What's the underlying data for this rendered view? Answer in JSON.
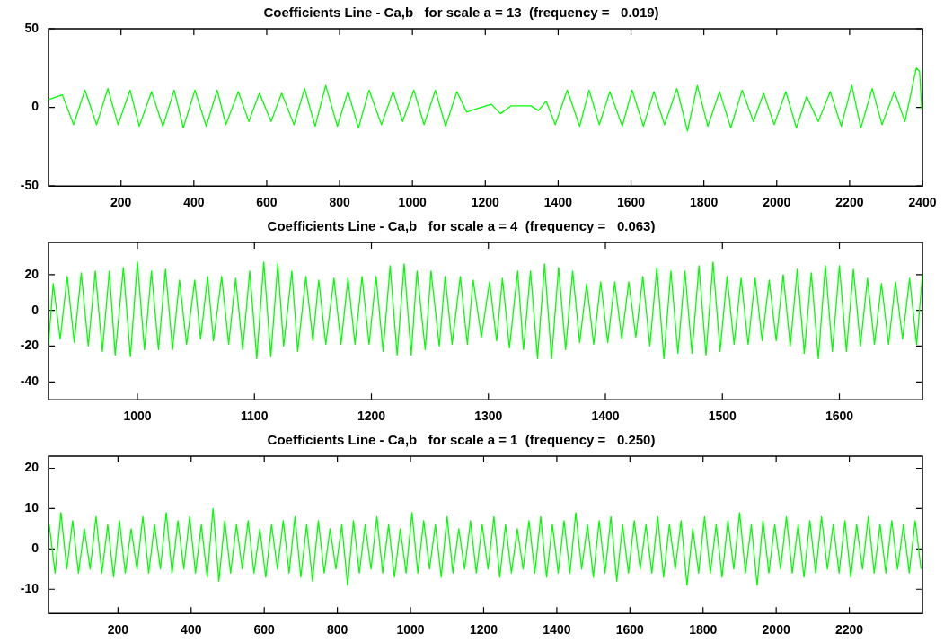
{
  "chart_data": [
    {
      "type": "line",
      "title": "Coefficients Line - Ca,b   for scale a = 13  (frequency =   0.019)",
      "xlim": [
        1,
        2400
      ],
      "xticks": [
        200,
        400,
        600,
        800,
        1000,
        1200,
        1400,
        1600,
        1800,
        2000,
        2200,
        2400
      ],
      "ylim": [
        -50,
        50
      ],
      "yticks": [
        -50,
        0,
        50
      ],
      "series": [
        {
          "color": "#00ff00",
          "x": [
            2,
            39,
            70,
            101,
            133,
            164,
            192,
            225,
            250,
            284,
            315,
            346,
            371,
            403,
            434,
            464,
            488,
            522,
            551,
            580,
            612,
            641,
            675,
            704,
            733,
            762,
            794,
            823,
            852,
            881,
            915,
            947,
            973,
            1004,
            1032,
            1063,
            1091,
            1122,
            1149,
            1174,
            1217,
            1242,
            1271,
            1325,
            1346,
            1367,
            1392,
            1425,
            1459,
            1485,
            1513,
            1542,
            1576,
            1603,
            1634,
            1663,
            1692,
            1726,
            1755,
            1782,
            1811,
            1843,
            1874,
            1905,
            1936,
            1964,
            1993,
            2025,
            2054,
            2082,
            2114,
            2147,
            2177,
            2206,
            2231,
            2262,
            2289,
            2323,
            2352,
            2383,
            2392,
            2398
          ],
          "values": [
            5,
            8,
            -11,
            11,
            -11,
            12,
            -11,
            11,
            -12,
            10,
            -12,
            11,
            -13,
            11,
            -12,
            11,
            -11,
            10,
            -9,
            9,
            -9,
            9,
            -11,
            12,
            -12,
            14,
            -12,
            10,
            -13,
            11,
            -11,
            10,
            -9,
            11,
            -11,
            11,
            -12,
            10,
            -3,
            -1,
            2,
            -4,
            1,
            1,
            -2,
            4,
            -11,
            11,
            -12,
            11,
            -11,
            10,
            -12,
            11,
            -12,
            10,
            -11,
            12,
            -15,
            14,
            -12,
            10,
            -13,
            11,
            -9,
            9,
            -11,
            10,
            -13,
            7,
            -9,
            10,
            -12,
            14,
            -13,
            12,
            -11,
            10,
            -9,
            25,
            23,
            -1
          ]
        }
      ]
    },
    {
      "type": "line",
      "title": "Coefficients Line - Ca,b   for scale a = 4  (frequency =   0.063)",
      "xlim": [
        924,
        1671
      ],
      "xticks": [
        1000,
        1100,
        1200,
        1300,
        1400,
        1500,
        1600
      ],
      "ylim": [
        -50,
        38
      ],
      "yticks": [
        -40,
        -20,
        0,
        20
      ],
      "series": [
        {
          "color": "#00ff00",
          "x": [
            924,
            928,
            934,
            940,
            946,
            952,
            958,
            964,
            970,
            976,
            981,
            988,
            994,
            1000,
            1006,
            1012,
            1018,
            1024,
            1030,
            1036,
            1042,
            1049,
            1054,
            1060,
            1065,
            1072,
            1078,
            1084,
            1090,
            1096,
            1102,
            1108,
            1114,
            1120,
            1125,
            1132,
            1137,
            1144,
            1150,
            1155,
            1161,
            1168,
            1174,
            1180,
            1186,
            1192,
            1198,
            1204,
            1210,
            1216,
            1222,
            1228,
            1234,
            1239,
            1246,
            1251,
            1258,
            1263,
            1269,
            1276,
            1282,
            1287,
            1294,
            1301,
            1307,
            1312,
            1318,
            1325,
            1330,
            1336,
            1342,
            1348,
            1354,
            1360,
            1366,
            1372,
            1378,
            1384,
            1390,
            1396,
            1402,
            1408,
            1414,
            1420,
            1426,
            1432,
            1438,
            1444,
            1450,
            1456,
            1462,
            1468,
            1474,
            1480,
            1486,
            1492,
            1498,
            1504,
            1510,
            1516,
            1522,
            1528,
            1534,
            1540,
            1546,
            1552,
            1558,
            1564,
            1570,
            1576,
            1582,
            1588,
            1594,
            1600,
            1606,
            1612,
            1618,
            1624,
            1630,
            1636,
            1642,
            1648,
            1654,
            1660,
            1666,
            1671
          ],
          "values": [
            -19,
            15,
            -16,
            19,
            -18,
            21,
            -20,
            22,
            -23,
            22,
            -25,
            24,
            -26,
            27,
            -22,
            22,
            -22,
            23,
            -22,
            17,
            -19,
            17,
            -16,
            19,
            -17,
            19,
            -19,
            18,
            -22,
            22,
            -27,
            27,
            -26,
            26,
            -20,
            22,
            -23,
            19,
            -17,
            17,
            -19,
            18,
            -19,
            18,
            -19,
            19,
            -19,
            19,
            -23,
            25,
            -25,
            26,
            -25,
            22,
            -22,
            22,
            -20,
            19,
            -19,
            19,
            -19,
            17,
            -15,
            16,
            -17,
            18,
            -21,
            22,
            -22,
            22,
            -27,
            26,
            -27,
            24,
            -22,
            22,
            -18,
            15,
            -19,
            16,
            -18,
            16,
            -16,
            16,
            -15,
            19,
            -20,
            24,
            -27,
            22,
            -24,
            22,
            -24,
            25,
            -25,
            27,
            -23,
            19,
            -19,
            18,
            -19,
            18,
            -17,
            17,
            -17,
            20,
            -20,
            23,
            -24,
            21,
            -27,
            25,
            -23,
            25,
            -23,
            23,
            -20,
            18,
            -19,
            15,
            -19,
            16,
            -16,
            18,
            -19,
            20
          ]
        }
      ]
    },
    {
      "type": "line",
      "title": "Coefficients Line - Ca,b   for scale a = 1  (frequency =   0.250)",
      "xlim": [
        10,
        2400
      ],
      "xticks": [
        200,
        400,
        600,
        800,
        1000,
        1200,
        1400,
        1600,
        1800,
        2000,
        2200
      ],
      "ylim": [
        -16,
        23
      ],
      "yticks": [
        -10,
        0,
        10,
        20
      ],
      "series": [
        {
          "color": "#00ff00",
          "x": [
            12,
            28,
            44,
            60,
            76,
            92,
            108,
            124,
            140,
            156,
            172,
            188,
            204,
            220,
            236,
            252,
            268,
            284,
            300,
            316,
            332,
            348,
            364,
            380,
            396,
            412,
            428,
            444,
            460,
            476,
            492,
            508,
            524,
            540,
            556,
            572,
            588,
            604,
            620,
            636,
            652,
            668,
            684,
            700,
            716,
            732,
            748,
            764,
            780,
            796,
            812,
            828,
            844,
            860,
            876,
            892,
            908,
            924,
            940,
            956,
            972,
            988,
            1004,
            1020,
            1036,
            1052,
            1068,
            1084,
            1100,
            1116,
            1132,
            1148,
            1164,
            1180,
            1196,
            1212,
            1228,
            1244,
            1260,
            1276,
            1292,
            1308,
            1324,
            1340,
            1356,
            1372,
            1388,
            1404,
            1420,
            1436,
            1452,
            1468,
            1484,
            1500,
            1516,
            1532,
            1548,
            1564,
            1580,
            1596,
            1612,
            1628,
            1644,
            1660,
            1676,
            1692,
            1708,
            1724,
            1740,
            1756,
            1772,
            1788,
            1804,
            1820,
            1836,
            1852,
            1868,
            1884,
            1900,
            1916,
            1932,
            1948,
            1964,
            1980,
            1996,
            2012,
            2028,
            2044,
            2060,
            2076,
            2092,
            2108,
            2124,
            2140,
            2156,
            2172,
            2188,
            2204,
            2220,
            2236,
            2252,
            2268,
            2284,
            2300,
            2316,
            2332,
            2348,
            2364,
            2380,
            2396
          ],
          "values": [
            6,
            -6,
            9,
            -5,
            7,
            -6,
            5,
            -5,
            8,
            -6,
            6,
            -7,
            7,
            -6,
            5,
            -5,
            8,
            -6,
            6,
            -5,
            9,
            -6,
            7,
            -5,
            8,
            -6,
            6,
            -7,
            10,
            -8,
            7,
            -6,
            6,
            -5,
            7,
            -6,
            5,
            -7,
            6,
            -5,
            7,
            -6,
            8,
            -7,
            6,
            -8,
            7,
            -6,
            5,
            -5,
            6,
            -9,
            7,
            -6,
            6,
            -5,
            8,
            -6,
            6,
            -7,
            5,
            -6,
            9,
            -6,
            7,
            -5,
            6,
            -7,
            8,
            -6,
            5,
            -5,
            7,
            -6,
            6,
            -5,
            8,
            -7,
            6,
            -6,
            5,
            -5,
            7,
            -6,
            8,
            -7,
            6,
            -6,
            7,
            -6,
            9,
            -5,
            6,
            -7,
            7,
            -6,
            8,
            -8,
            6,
            -6,
            7,
            -5,
            6,
            -6,
            8,
            -7,
            6,
            -5,
            7,
            -9,
            5,
            -6,
            8,
            -6,
            6,
            -7,
            7,
            -5,
            9,
            -6,
            6,
            -9,
            7,
            -6,
            6,
            -5,
            8,
            -6,
            6,
            -7,
            7,
            -6,
            8,
            -5,
            6,
            -6,
            7,
            -7,
            6,
            -5,
            8,
            -6,
            6,
            -6,
            7,
            -5,
            6,
            -6,
            7,
            -5
          ]
        }
      ]
    }
  ]
}
